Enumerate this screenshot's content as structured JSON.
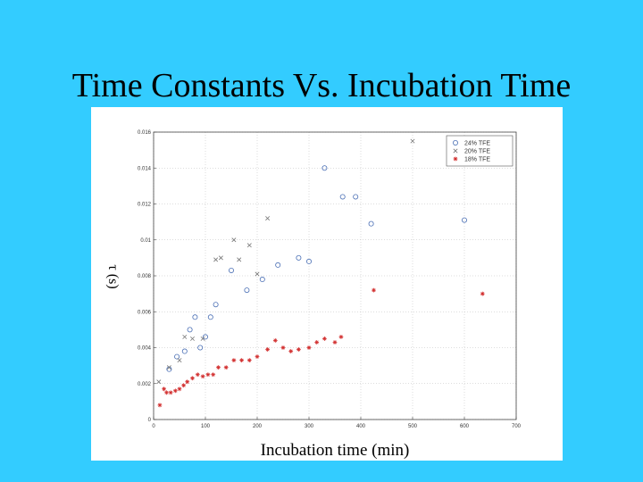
{
  "slide": {
    "title": "Time Constants Vs. Incubation Time"
  },
  "colors": {
    "background": "#33ccff",
    "series_blue": "#4a6fb5",
    "series_red": "#d12a2a",
    "series_gray": "#777777"
  },
  "chart_data": {
    "type": "scatter",
    "xlabel": "Incubation time (min)",
    "ylabel": "τ (s)",
    "xlim": [
      0,
      700
    ],
    "ylim": [
      0,
      0.016
    ],
    "xticks": [
      "0",
      "100",
      "200",
      "300",
      "400",
      "500",
      "600",
      "700"
    ],
    "yticks": [
      "0",
      "0.002",
      "0.004",
      "0.006",
      "0.008",
      "0.01",
      "0.012",
      "0.014",
      "0.016"
    ],
    "grid": true,
    "legend_position": "top-right",
    "series": [
      {
        "name": "24% TFE",
        "marker": "circle",
        "color": "#4a6fb5",
        "points": [
          [
            30,
            0.0028
          ],
          [
            45,
            0.0035
          ],
          [
            60,
            0.0038
          ],
          [
            70,
            0.005
          ],
          [
            80,
            0.0057
          ],
          [
            90,
            0.004
          ],
          [
            100,
            0.0046
          ],
          [
            110,
            0.0057
          ],
          [
            120,
            0.0064
          ],
          [
            150,
            0.0083
          ],
          [
            180,
            0.0072
          ],
          [
            210,
            0.0078
          ],
          [
            240,
            0.0086
          ],
          [
            280,
            0.009
          ],
          [
            300,
            0.0088
          ],
          [
            330,
            0.014
          ],
          [
            365,
            0.0124
          ],
          [
            390,
            0.0124
          ],
          [
            420,
            0.0109
          ],
          [
            600,
            0.0111
          ]
        ]
      },
      {
        "name": "20% TFE",
        "marker": "x",
        "color": "#777777",
        "points": [
          [
            10,
            0.0021
          ],
          [
            30,
            0.0029
          ],
          [
            50,
            0.0033
          ],
          [
            60,
            0.0046
          ],
          [
            75,
            0.0045
          ],
          [
            95,
            0.0045
          ],
          [
            120,
            0.0089
          ],
          [
            130,
            0.009
          ],
          [
            155,
            0.01
          ],
          [
            165,
            0.0089
          ],
          [
            185,
            0.0097
          ],
          [
            200,
            0.0081
          ],
          [
            220,
            0.0112
          ],
          [
            500,
            0.0155
          ]
        ]
      },
      {
        "name": "18% TFE",
        "marker": "asterisk",
        "color": "#d12a2a",
        "points": [
          [
            12,
            0.0008
          ],
          [
            20,
            0.0017
          ],
          [
            25,
            0.0015
          ],
          [
            33,
            0.0015
          ],
          [
            42,
            0.0016
          ],
          [
            50,
            0.0017
          ],
          [
            58,
            0.0019
          ],
          [
            65,
            0.0021
          ],
          [
            75,
            0.0023
          ],
          [
            85,
            0.0025
          ],
          [
            95,
            0.0024
          ],
          [
            105,
            0.0025
          ],
          [
            115,
            0.0025
          ],
          [
            125,
            0.0029
          ],
          [
            140,
            0.0029
          ],
          [
            155,
            0.0033
          ],
          [
            170,
            0.0033
          ],
          [
            185,
            0.0033
          ],
          [
            200,
            0.0035
          ],
          [
            220,
            0.0039
          ],
          [
            235,
            0.0044
          ],
          [
            250,
            0.004
          ],
          [
            265,
            0.0038
          ],
          [
            280,
            0.0039
          ],
          [
            300,
            0.004
          ],
          [
            315,
            0.0043
          ],
          [
            330,
            0.0045
          ],
          [
            350,
            0.0043
          ],
          [
            362,
            0.0046
          ],
          [
            425,
            0.0072
          ],
          [
            635,
            0.007
          ]
        ]
      }
    ]
  }
}
